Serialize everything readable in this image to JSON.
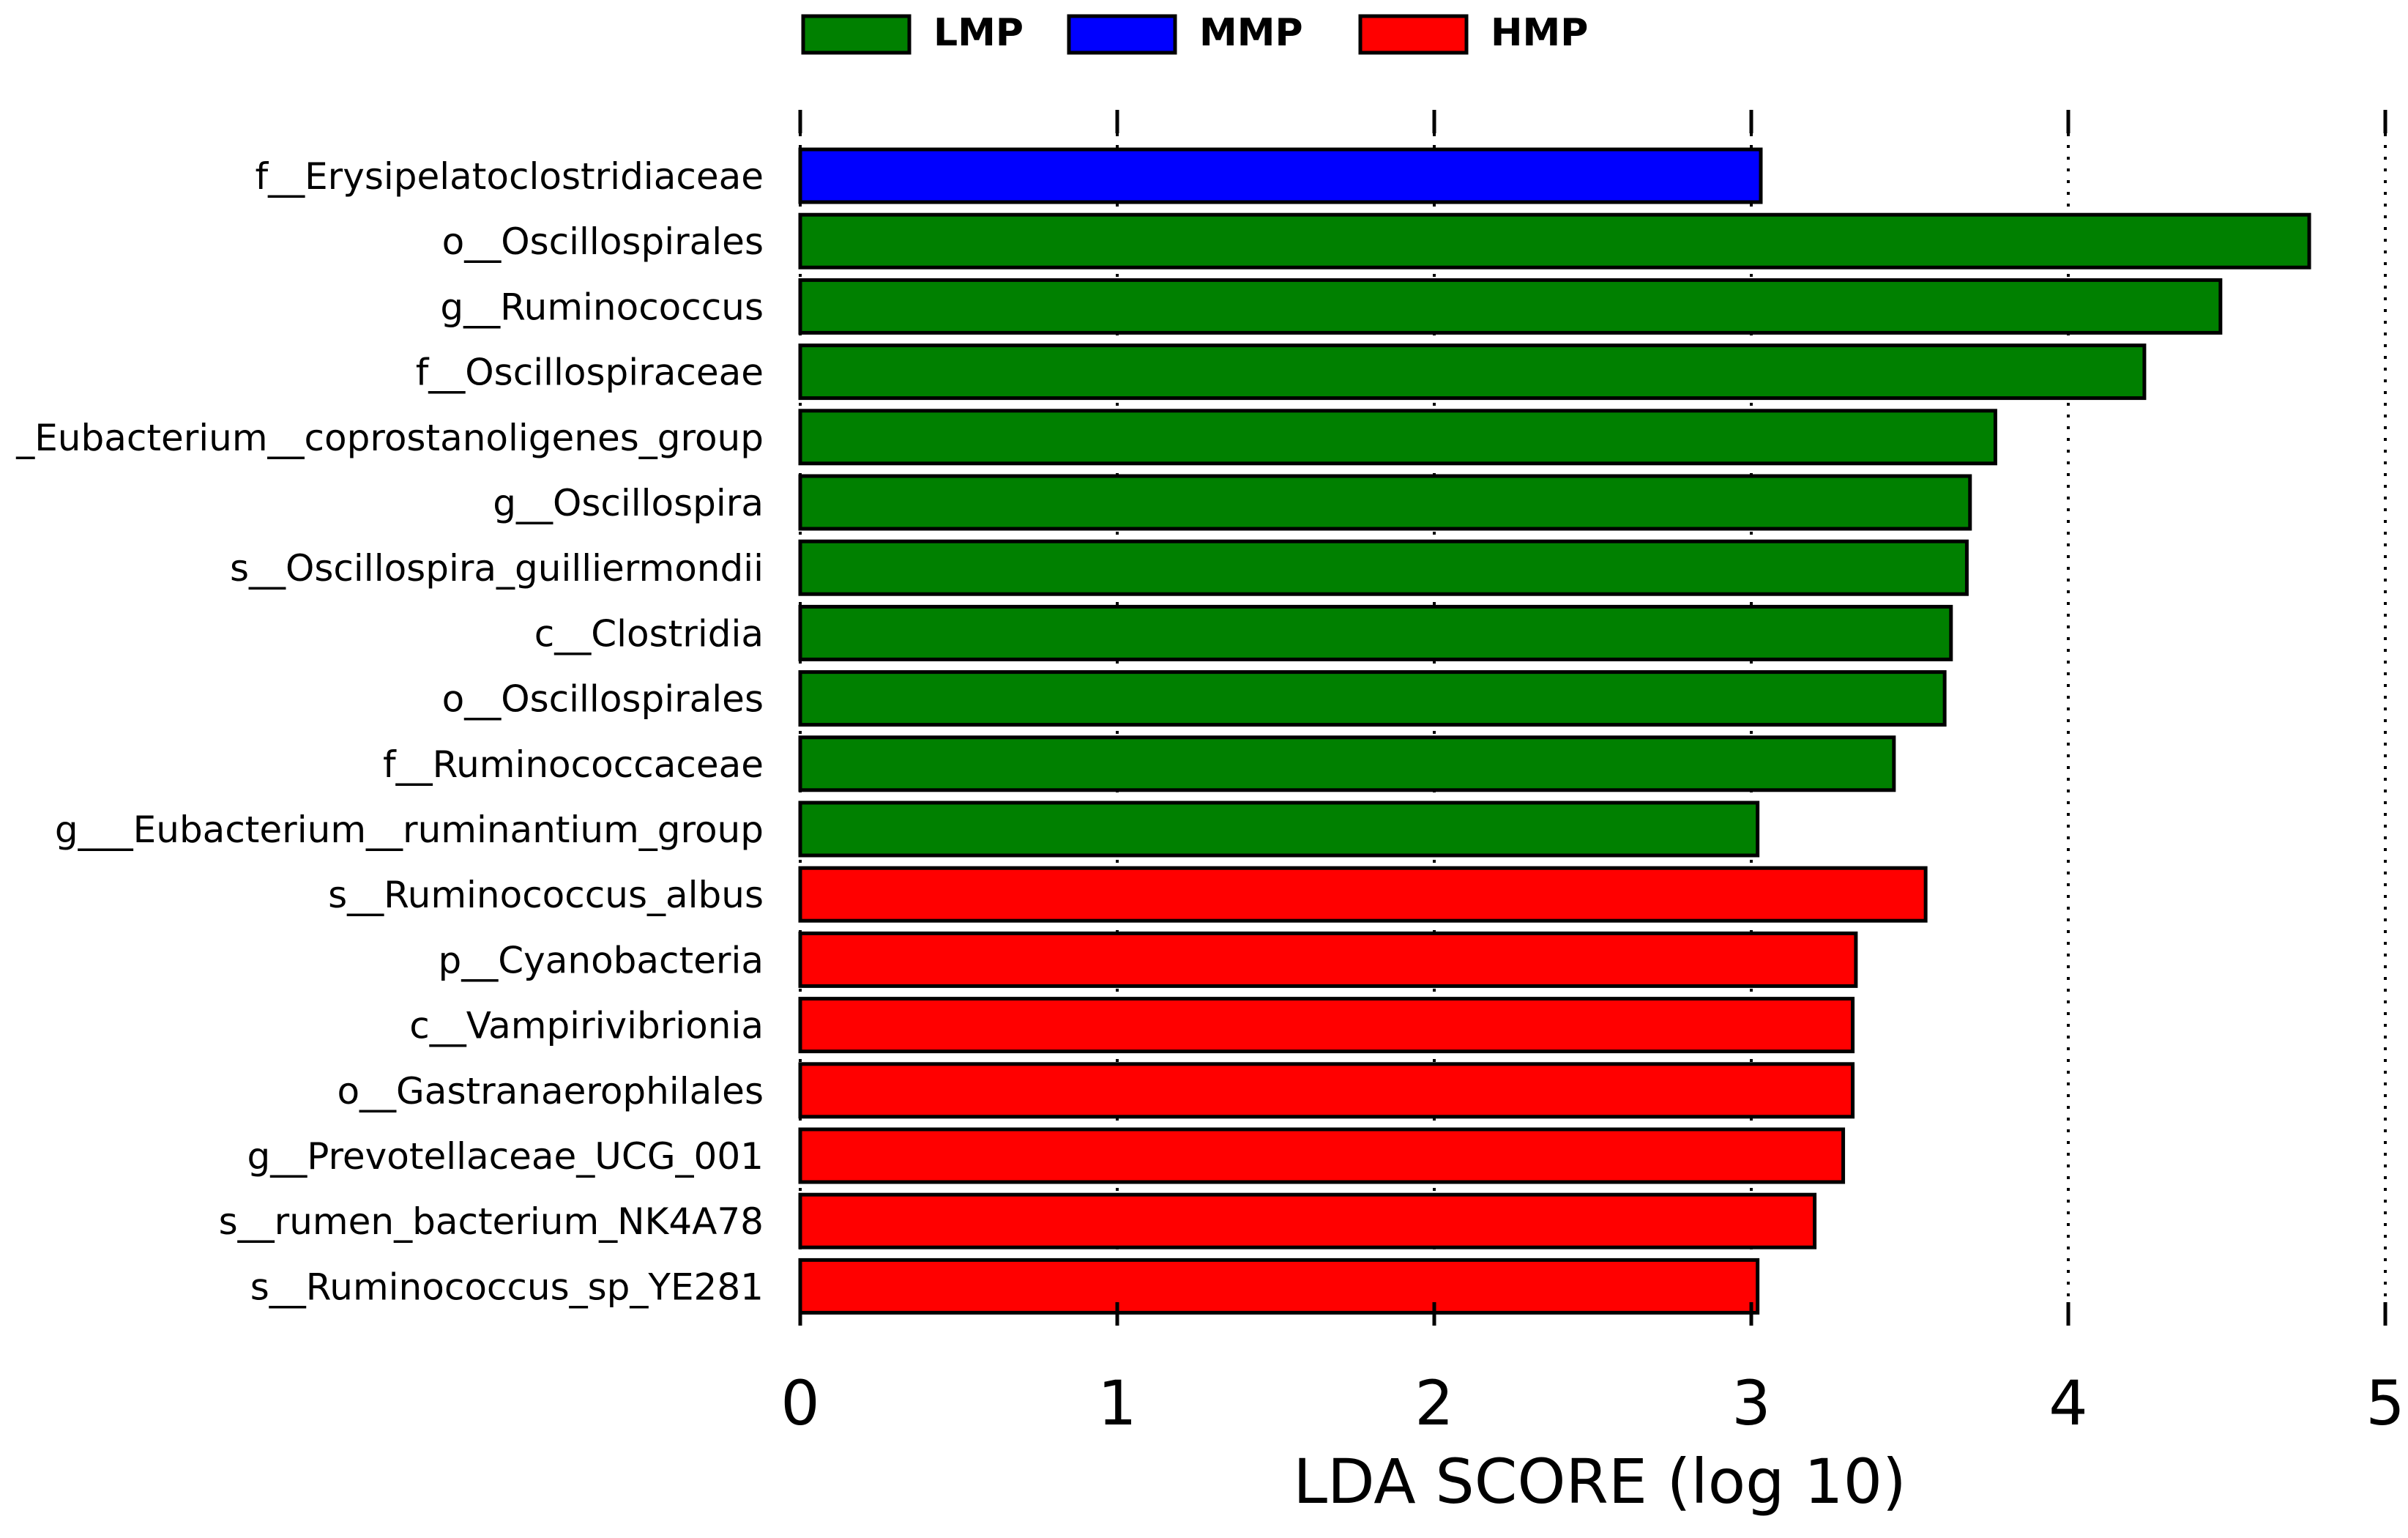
{
  "chart_data": {
    "type": "bar",
    "orientation": "horizontal",
    "title": "",
    "xlabel": "LDA SCORE (log 10)",
    "ylabel": "",
    "xlim": [
      0,
      5
    ],
    "xticks": [
      "0",
      "1",
      "2",
      "3",
      "4",
      "5"
    ],
    "grid": "vertical dotted",
    "legend": {
      "position": "top",
      "entries": [
        {
          "label": "LMP",
          "color": "#008000"
        },
        {
          "label": "MMP",
          "color": "#0000ff"
        },
        {
          "label": "HMP",
          "color": "#ff0000"
        }
      ]
    },
    "categories": [
      "f__Erysipelatoclostridiaceae",
      "o__Oscillospirales",
      "g__Ruminococcus",
      "f__Oscillospiraceae",
      "_Eubacterium__coprostanoligenes_group",
      "g__Oscillospira",
      "s__Oscillospira_guilliermondii",
      "c__Clostridia",
      "o__Oscillospirales",
      "f__Ruminococcaceae",
      "g___Eubacterium__ruminantium_group",
      "s__Ruminococcus_albus",
      "p__Cyanobacteria",
      "c__Vampirivibrionia",
      "o__Gastranaerophilales",
      "g__Prevotellaceae_UCG_001",
      "s__rumen_bacterium_NK4A78",
      "s__Ruminococcus_sp_YE281"
    ],
    "values": [
      3.03,
      4.76,
      4.48,
      4.24,
      3.77,
      3.69,
      3.68,
      3.63,
      3.61,
      3.45,
      3.02,
      3.55,
      3.33,
      3.32,
      3.32,
      3.29,
      3.2,
      3.02
    ],
    "groups": [
      "MMP",
      "LMP",
      "LMP",
      "LMP",
      "LMP",
      "LMP",
      "LMP",
      "LMP",
      "LMP",
      "LMP",
      "LMP",
      "HMP",
      "HMP",
      "HMP",
      "HMP",
      "HMP",
      "HMP",
      "HMP"
    ]
  }
}
